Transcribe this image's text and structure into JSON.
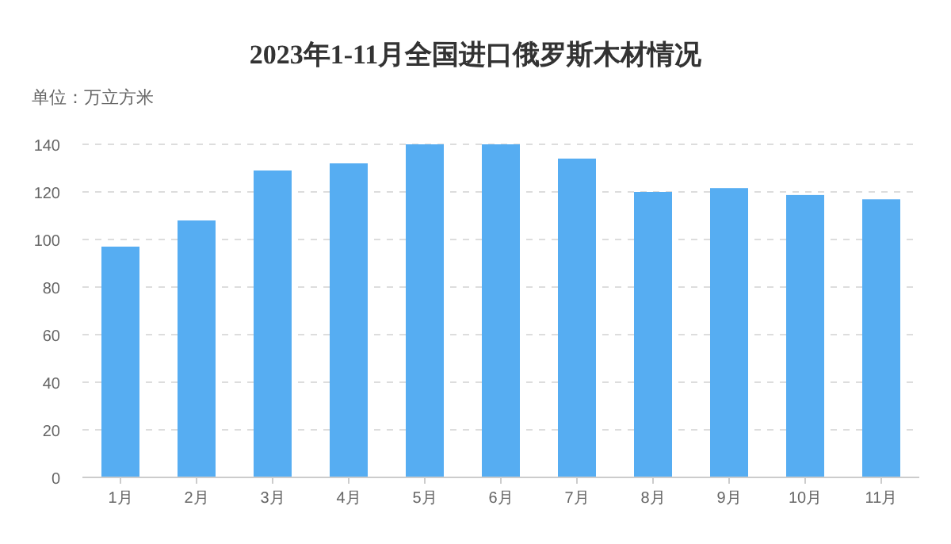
{
  "chart_data": {
    "type": "bar",
    "title": "2023年1-11月全国进口俄罗斯木材情况",
    "ylabel": "单位：万立方米",
    "categories": [
      "1月",
      "2月",
      "3月",
      "4月",
      "5月",
      "6月",
      "7月",
      "8月",
      "9月",
      "10月",
      "11月"
    ],
    "values": [
      97,
      108,
      129,
      132,
      140,
      140,
      134,
      120,
      121.6,
      118.7,
      116.9
    ],
    "color": "#56adf2",
    "ylim": [
      0,
      140
    ],
    "yticks": [
      0,
      20,
      40,
      60,
      80,
      100,
      120,
      140
    ],
    "grid": "y"
  }
}
